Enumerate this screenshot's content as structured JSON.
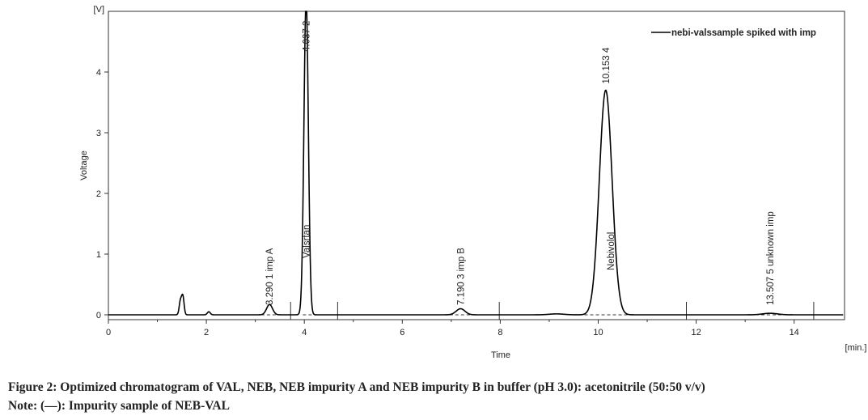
{
  "chart_data": {
    "type": "line",
    "xlabel": "Time",
    "xunit": "[min.]",
    "ylabel": "Voltage",
    "yunit": "[V]",
    "xlim": [
      0,
      15
    ],
    "ylim": [
      -0.1,
      5
    ],
    "x_ticks": [
      "0",
      "2",
      "4",
      "6",
      "8",
      "10",
      "12",
      "14"
    ],
    "y_ticks": [
      "0",
      "1",
      "2",
      "3",
      "4"
    ],
    "grid": false,
    "legend_position": "top-right",
    "series": [
      {
        "name": "nebi-valssample spiked with imp",
        "color": "#000000",
        "baseline": 0.0,
        "peaks": [
          {
            "time": 1.47,
            "height": 0.22,
            "width": 0.025
          },
          {
            "time": 1.52,
            "height": 0.3,
            "width": 0.025
          },
          {
            "time": 2.05,
            "height": 0.05,
            "width": 0.03
          },
          {
            "time": 3.29,
            "height": 0.17,
            "width": 0.06
          },
          {
            "time": 4.037,
            "height": 5.2,
            "width": 0.045
          },
          {
            "time": 7.19,
            "height": 0.1,
            "width": 0.09
          },
          {
            "time": 9.15,
            "height": 0.015,
            "width": 0.15
          },
          {
            "time": 10.153,
            "height": 3.7,
            "width": 0.13
          },
          {
            "time": 13.507,
            "height": 0.025,
            "width": 0.15
          }
        ]
      }
    ],
    "integration_baselines": [
      [
        3.12,
        3.72
      ],
      [
        3.97,
        4.68
      ],
      [
        6.85,
        7.98
      ],
      [
        9.72,
        11.8
      ],
      [
        12.98,
        14.4
      ]
    ],
    "integration_markers": [
      3.72,
      4.68,
      7.98,
      11.8,
      14.4
    ],
    "peak_labels": [
      {
        "time": 3.29,
        "retention": "3.290",
        "number": "1",
        "name": "imp A"
      },
      {
        "time": 4.037,
        "retention": "4.037",
        "number": "2",
        "name": "Valsrtan"
      },
      {
        "time": 7.19,
        "retention": "7.190",
        "number": "3",
        "name": "imp B"
      },
      {
        "time": 10.153,
        "retention": "10.153",
        "number": "4",
        "name": "Nebivolol"
      },
      {
        "time": 13.507,
        "retention": "13.507",
        "number": "5",
        "name": "unknown imp"
      }
    ]
  },
  "caption": {
    "line1": "Figure 2: Optimized chromatogram of VAL, NEB, NEB impurity A and NEB impurity B in buffer (pH 3.0): acetonitrile (50:50 v/v)",
    "line2": "Note: (—): Impurity sample of NEB-VAL"
  }
}
